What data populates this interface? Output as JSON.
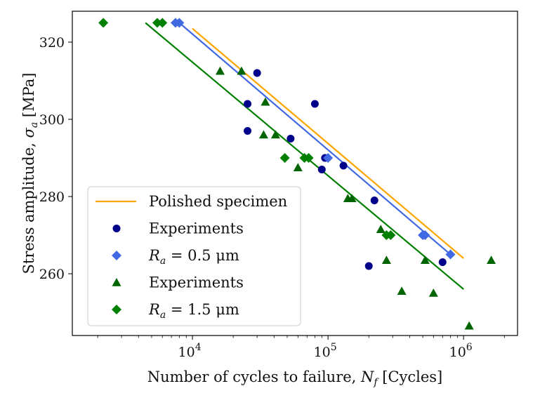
{
  "chart_data": {
    "type": "scatter",
    "title": "",
    "xlabel": "Number of cycles to failure, N_f [Cycles]",
    "ylabel": "Stress amplitude, σ_a [MPa]",
    "xscale": "log",
    "xlim": [
      1300,
      2500000
    ],
    "ylim": [
      244,
      328
    ],
    "grid": false,
    "legend_position": "lower-left",
    "x_ticks": [
      {
        "value": 10000,
        "label": "10^4",
        "base": "10",
        "exp": "4"
      },
      {
        "value": 100000,
        "label": "10^5",
        "base": "10",
        "exp": "5"
      },
      {
        "value": 1000000,
        "label": "10^6",
        "base": "10",
        "exp": "6"
      }
    ],
    "y_ticks": [
      {
        "value": 260,
        "label": "260"
      },
      {
        "value": 280,
        "label": "280"
      },
      {
        "value": 300,
        "label": "300"
      },
      {
        "value": 320,
        "label": "320"
      }
    ],
    "series": [
      {
        "name": "Polished specimen",
        "kind": "line",
        "color": "#FFA500",
        "points": [
          [
            10000,
            323.5
          ],
          [
            1000000,
            264
          ]
        ]
      },
      {
        "name": "Experiments",
        "kind": "circle",
        "color": "#00008B",
        "points": [
          [
            30000,
            312
          ],
          [
            25500,
            304
          ],
          [
            80000,
            304
          ],
          [
            25500,
            297
          ],
          [
            53000,
            295
          ],
          [
            95000,
            290
          ],
          [
            90000,
            287
          ],
          [
            130000,
            288
          ],
          [
            220000,
            279
          ],
          [
            200000,
            262
          ],
          [
            700000,
            263
          ]
        ]
      },
      {
        "name": "R_a = 0.5 μm",
        "kind": "diamond",
        "color": "#4169E1",
        "points": [
          [
            7500,
            325
          ],
          [
            8000,
            325
          ],
          [
            100000,
            290
          ],
          [
            500000,
            270
          ],
          [
            520000,
            270
          ],
          [
            800000,
            265
          ]
        ],
        "fit_line": [
          [
            8000,
            325
          ],
          [
            800000,
            265
          ]
        ]
      },
      {
        "name": "Experiments",
        "kind": "triangle",
        "color": "#006400",
        "points": [
          [
            16000,
            312.5
          ],
          [
            23000,
            312.5
          ],
          [
            34500,
            304.5
          ],
          [
            33500,
            296
          ],
          [
            41000,
            296
          ],
          [
            60000,
            287.5
          ],
          [
            140000,
            279.5
          ],
          [
            150000,
            279.5
          ],
          [
            245000,
            271.5
          ],
          [
            270000,
            263.5
          ],
          [
            520000,
            263.5
          ],
          [
            350000,
            255.5
          ],
          [
            600000,
            255
          ],
          [
            1600000,
            263.5
          ],
          [
            1100000,
            246.5
          ]
        ]
      },
      {
        "name": "R_a = 1.5 μm",
        "kind": "diamond",
        "color": "#008000",
        "points": [
          [
            2200,
            325
          ],
          [
            5500,
            325
          ],
          [
            6000,
            325
          ],
          [
            48000,
            290
          ],
          [
            67000,
            290
          ],
          [
            72000,
            290
          ],
          [
            270000,
            270
          ],
          [
            290000,
            270
          ]
        ],
        "fit_line": [
          [
            4500,
            325
          ],
          [
            1000000,
            256
          ]
        ]
      }
    ],
    "legend": [
      {
        "label": "Polished specimen",
        "marker": "line",
        "color": "#FFA500",
        "parts": {
          "main": "Polished specimen"
        }
      },
      {
        "label": "Experiments",
        "marker": "circle",
        "color": "#00008B",
        "parts": {
          "main": "Experiments"
        }
      },
      {
        "label": "R_a = 0.5 μm",
        "marker": "diamond",
        "color": "#4169E1",
        "parts": {
          "sym": "R",
          "sub": "a",
          "rest": " = 0.5 μm"
        }
      },
      {
        "label": "Experiments",
        "marker": "triangle",
        "color": "#006400",
        "parts": {
          "main": "Experiments"
        }
      },
      {
        "label": "R_a = 1.5 μm",
        "marker": "diamond",
        "color": "#008000",
        "parts": {
          "sym": "R",
          "sub": "a",
          "rest": " = 1.5 μm"
        }
      }
    ]
  }
}
